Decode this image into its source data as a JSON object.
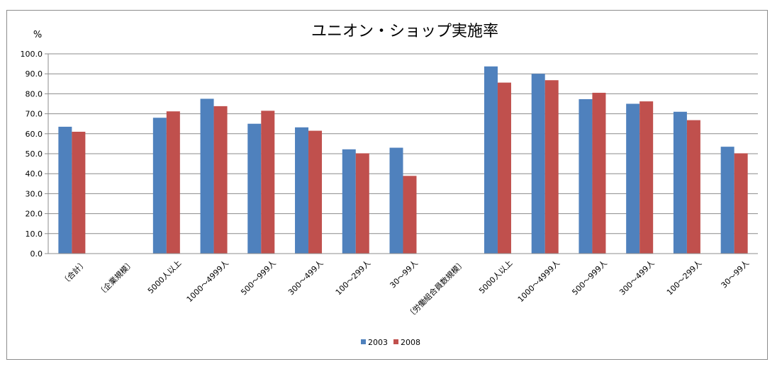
{
  "chart_data": {
    "type": "bar",
    "title": "ユニオン・ショップ実施率",
    "ylabel": "%",
    "xlabel": "",
    "ylim": [
      0,
      100
    ],
    "yticks": [
      "0.0",
      "10.0",
      "20.0",
      "30.0",
      "40.0",
      "50.0",
      "60.0",
      "70.0",
      "80.0",
      "90.0",
      "100.0"
    ],
    "grid": true,
    "legend_position": "bottom",
    "categories": [
      "〔合計〕",
      "〔企業規模〕",
      "5000人以上",
      "1000～4999人",
      "500～999人",
      "300～499人",
      "100～299人",
      "30～99人",
      "〔労働組合員数規模〕",
      "5000人以上",
      "1000～4999人",
      "500～999人",
      "300～499人",
      "100～299人",
      "30～99人"
    ],
    "series": [
      {
        "name": "2003",
        "color": "#4f81bd",
        "values": [
          63.5,
          null,
          68.0,
          77.5,
          65.0,
          63.2,
          52.2,
          53.0,
          null,
          93.7,
          90.0,
          77.3,
          75.0,
          71.0,
          53.5
        ]
      },
      {
        "name": "2008",
        "color": "#c0504d",
        "values": [
          61.0,
          null,
          71.2,
          73.8,
          71.5,
          61.5,
          50.2,
          38.9,
          null,
          85.6,
          86.8,
          80.5,
          76.2,
          66.8,
          50.2
        ]
      }
    ]
  }
}
